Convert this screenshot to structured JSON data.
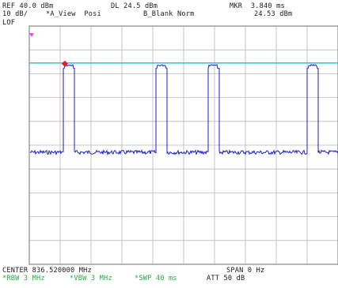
{
  "header": {
    "ref": "REF 40.0 dBm",
    "dl": "DL 24.5 dBm",
    "mkr": "MKR  3.840 ms",
    "scale": "10 dB/",
    "view": "*A_View  Posi",
    "blank": "B_Blank Norm",
    "mkr_value": "24.53 dBm",
    "lof": "LOF"
  },
  "footer": {
    "center": "CENTER 836.520000 MHz",
    "span": "SPAN 0 Hz",
    "rbw": "*RBW 3 MHz",
    "vbw": "*VBW 3 MHz",
    "swp": "*SWP 40 ms",
    "att": "ATT 50 dB"
  },
  "colors": {
    "trace": "#1c1cd0",
    "display_line": "#38c8d8",
    "marker": "#e02020",
    "grid": "#b8b8b8",
    "border": "#707070",
    "lof_marker": "#ff40ff",
    "setting_text": "#20b040"
  },
  "trace_data": {
    "units": "dBm",
    "ref_level": 40.0,
    "db_per_div": 10,
    "display_line_level": 24.5,
    "noise_floor": -13,
    "pulse_level": 24.5,
    "pulses": [
      {
        "start": 0.11,
        "end": 0.145
      },
      {
        "start": 0.41,
        "end": 0.445
      },
      {
        "start": 0.578,
        "end": 0.613
      },
      {
        "start": 0.9,
        "end": 0.935
      }
    ]
  }
}
